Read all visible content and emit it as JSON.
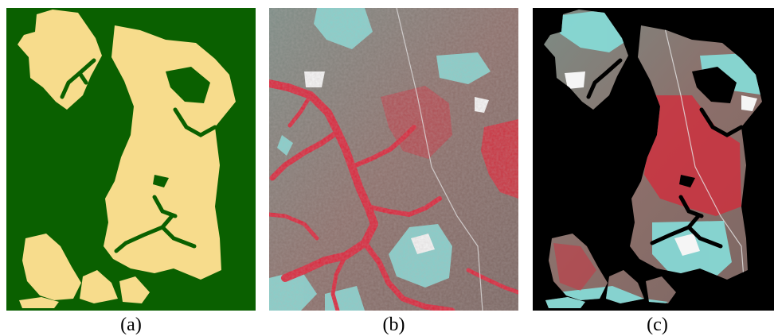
{
  "panels": [
    {
      "caption": "(a)"
    },
    {
      "caption": "(b)"
    },
    {
      "caption": "(c)"
    }
  ],
  "colors": {
    "mask_background": "#0a6000",
    "mask_foreground": "#f7dc8c",
    "black_background": "#000000",
    "vegetation_red": "#d62a3a",
    "grassland_gray": "#8a7570",
    "cleared_cyan": "#7fe3e0"
  }
}
